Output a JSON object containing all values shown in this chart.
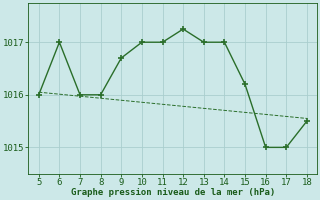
{
  "x": [
    5,
    6,
    7,
    8,
    9,
    10,
    11,
    12,
    13,
    14,
    15,
    16,
    17,
    18
  ],
  "y": [
    1016.0,
    1017.0,
    1016.0,
    1016.0,
    1016.7,
    1017.0,
    1017.0,
    1017.25,
    1017.0,
    1017.0,
    1016.2,
    1015.0,
    1015.0,
    1015.5
  ],
  "trend_x": [
    5,
    18
  ],
  "trend_y": [
    1016.05,
    1015.55
  ],
  "line_color": "#2a6e2a",
  "marker": "+",
  "marker_size": 5,
  "marker_lw": 1.2,
  "bg_color": "#cce8e8",
  "grid_color": "#aacece",
  "xlabel": "Graphe pression niveau de la mer (hPa)",
  "xlabel_color": "#1a5c1a",
  "tick_color": "#1a5c1a",
  "ylim": [
    1014.5,
    1017.75
  ],
  "xlim": [
    4.5,
    18.5
  ],
  "yticks": [
    1015,
    1016,
    1017
  ],
  "xticks": [
    5,
    6,
    7,
    8,
    9,
    10,
    11,
    12,
    13,
    14,
    15,
    16,
    17,
    18
  ],
  "linewidth": 1.0,
  "trend_linewidth": 0.7,
  "font_size": 6.5
}
